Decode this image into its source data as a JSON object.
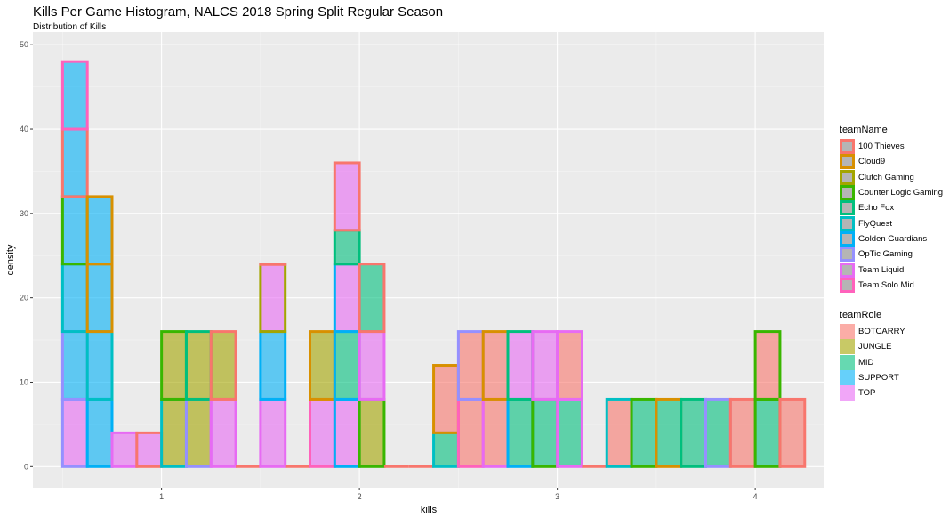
{
  "chart_data": {
    "type": "bar",
    "title": "Kills Per Game Histogram, NALCS 2018 Spring Split Regular Season",
    "subtitle": "Distribution of Kills",
    "xlabel": "kills",
    "ylabel": "density",
    "xlim": [
      0.35,
      4.35
    ],
    "ylim": [
      -2.5,
      51.5
    ],
    "x_ticks": [
      1,
      2,
      3,
      4
    ],
    "y_ticks": [
      0,
      10,
      20,
      30,
      40,
      50
    ],
    "bin_width": 0.125,
    "grid": true,
    "legend_position": "right",
    "fill_legend": {
      "title": "teamRole",
      "entries": [
        {
          "name": "BOTCARRY",
          "color": "#F8766D"
        },
        {
          "name": "JUNGLE",
          "color": "#A3A500"
        },
        {
          "name": "MID",
          "color": "#00BF7D"
        },
        {
          "name": "SUPPORT",
          "color": "#00B0F6"
        },
        {
          "name": "TOP",
          "color": "#E76BF3"
        }
      ]
    },
    "color_legend": {
      "title": "teamName",
      "entries": [
        {
          "name": "100 Thieves",
          "color": "#F8766D"
        },
        {
          "name": "Cloud9",
          "color": "#D89000"
        },
        {
          "name": "Clutch Gaming",
          "color": "#A3A500"
        },
        {
          "name": "Counter Logic Gaming",
          "color": "#39B600"
        },
        {
          "name": "Echo Fox",
          "color": "#00BF7D"
        },
        {
          "name": "FlyQuest",
          "color": "#00BFC4"
        },
        {
          "name": "Golden Guardians",
          "color": "#00B0F6"
        },
        {
          "name": "OpTic Gaming",
          "color": "#9590FF"
        },
        {
          "name": "Team Liquid",
          "color": "#E76BF3"
        },
        {
          "name": "Team Solo Mid",
          "color": "#FF62BC"
        }
      ]
    },
    "bars": [
      {
        "x": 0.5625,
        "segments": [
          {
            "role": "TOP",
            "team": "OpTic Gaming",
            "value": 8
          },
          {
            "role": "SUPPORT",
            "team": "OpTic Gaming",
            "value": 8
          },
          {
            "role": "SUPPORT",
            "team": "FlyQuest",
            "value": 8
          },
          {
            "role": "SUPPORT",
            "team": "Counter Logic Gaming",
            "value": 8
          },
          {
            "role": "SUPPORT",
            "team": "100 Thieves",
            "value": 8
          },
          {
            "role": "SUPPORT",
            "team": "Team Solo Mid",
            "value": 8
          }
        ]
      },
      {
        "x": 0.6875,
        "segments": [
          {
            "role": "SUPPORT",
            "team": "Golden Guardians",
            "value": 8
          },
          {
            "role": "SUPPORT",
            "team": "FlyQuest",
            "value": 8
          },
          {
            "role": "SUPPORT",
            "team": "Cloud9",
            "value": 8
          },
          {
            "role": "SUPPORT",
            "team": "Cloud9",
            "value": 8
          }
        ]
      },
      {
        "x": 0.8125,
        "segments": [
          {
            "role": "TOP",
            "team": "Team Liquid",
            "value": 4
          }
        ]
      },
      {
        "x": 0.9375,
        "segments": [
          {
            "role": "TOP",
            "team": "100 Thieves",
            "value": 4
          }
        ]
      },
      {
        "x": 1.0625,
        "segments": [
          {
            "role": "JUNGLE",
            "team": "FlyQuest",
            "value": 8
          },
          {
            "role": "JUNGLE",
            "team": "Counter Logic Gaming",
            "value": 8
          }
        ]
      },
      {
        "x": 1.1875,
        "segments": [
          {
            "role": "JUNGLE",
            "team": "OpTic Gaming",
            "value": 8
          },
          {
            "role": "JUNGLE",
            "team": "Echo Fox",
            "value": 8
          }
        ]
      },
      {
        "x": 1.3125,
        "segments": [
          {
            "role": "TOP",
            "team": "Team Liquid",
            "value": 8
          },
          {
            "role": "JUNGLE",
            "team": "100 Thieves",
            "value": 8
          }
        ]
      },
      {
        "x": 1.4375,
        "segments": []
      },
      {
        "x": 1.5625,
        "segments": [
          {
            "role": "TOP",
            "team": "Team Liquid",
            "value": 8
          },
          {
            "role": "SUPPORT",
            "team": "Golden Guardians",
            "value": 8
          },
          {
            "role": "TOP",
            "team": "Clutch Gaming",
            "value": 8
          },
          {
            "role": "TOP",
            "team": "100 Thieves",
            "value": 0
          }
        ]
      },
      {
        "x": 1.6875,
        "segments": []
      },
      {
        "x": 1.8125,
        "segments": [
          {
            "role": "TOP",
            "team": "Team Solo Mid",
            "value": 8
          },
          {
            "role": "JUNGLE",
            "team": "Cloud9",
            "value": 8
          }
        ]
      },
      {
        "x": 1.9375,
        "segments": [
          {
            "role": "TOP",
            "team": "Golden Guardians",
            "value": 8
          },
          {
            "role": "MID",
            "team": "Golden Guardians",
            "value": 8
          },
          {
            "role": "TOP",
            "team": "Golden Guardians",
            "value": 8
          },
          {
            "role": "MID",
            "team": "Echo Fox",
            "value": 4
          },
          {
            "role": "TOP",
            "team": "100 Thieves",
            "value": 8
          }
        ]
      },
      {
        "x": 2.0625,
        "segments": [
          {
            "role": "JUNGLE",
            "team": "Counter Logic Gaming",
            "value": 8
          },
          {
            "role": "TOP",
            "team": "Team Liquid",
            "value": 8
          },
          {
            "role": "MID",
            "team": "100 Thieves",
            "value": 8
          }
        ]
      },
      {
        "x": 2.1875,
        "segments": []
      },
      {
        "x": 2.3125,
        "segments": []
      },
      {
        "x": 2.4375,
        "segments": [
          {
            "role": "MID",
            "team": "FlyQuest",
            "value": 4
          },
          {
            "role": "BOTCARRY",
            "team": "Cloud9",
            "value": 8
          }
        ]
      },
      {
        "x": 2.5625,
        "segments": [
          {
            "role": "BOTCARRY",
            "team": "Team Solo Mid",
            "value": 8
          },
          {
            "role": "BOTCARRY",
            "team": "OpTic Gaming",
            "value": 8
          }
        ]
      },
      {
        "x": 2.6875,
        "segments": [
          {
            "role": "BOTCARRY",
            "team": "Team Liquid",
            "value": 8
          },
          {
            "role": "BOTCARRY",
            "team": "Cloud9",
            "value": 8
          }
        ]
      },
      {
        "x": 2.8125,
        "segments": [
          {
            "role": "MID",
            "team": "Golden Guardians",
            "value": 8
          },
          {
            "role": "TOP",
            "team": "Echo Fox",
            "value": 8
          }
        ]
      },
      {
        "x": 2.9375,
        "segments": [
          {
            "role": "MID",
            "team": "Counter Logic Gaming",
            "value": 8
          },
          {
            "role": "TOP",
            "team": "Team Liquid",
            "value": 8
          }
        ]
      },
      {
        "x": 3.0625,
        "segments": [
          {
            "role": "MID",
            "team": "Team Liquid",
            "value": 8
          },
          {
            "role": "BOTCARRY",
            "team": "Team Liquid",
            "value": 8
          }
        ]
      },
      {
        "x": 3.1875,
        "segments": []
      },
      {
        "x": 3.3125,
        "segments": [
          {
            "role": "BOTCARRY",
            "team": "FlyQuest",
            "value": 8
          }
        ]
      },
      {
        "x": 3.4375,
        "segments": [
          {
            "role": "MID",
            "team": "Counter Logic Gaming",
            "value": 8
          }
        ]
      },
      {
        "x": 3.5625,
        "segments": [
          {
            "role": "MID",
            "team": "Cloud9",
            "value": 8
          }
        ]
      },
      {
        "x": 3.6875,
        "segments": [
          {
            "role": "MID",
            "team": "Echo Fox",
            "value": 8
          }
        ]
      },
      {
        "x": 3.8125,
        "segments": [
          {
            "role": "MID",
            "team": "OpTic Gaming",
            "value": 8
          }
        ]
      },
      {
        "x": 3.9375,
        "segments": [
          {
            "role": "BOTCARRY",
            "team": "100 Thieves",
            "value": 8
          }
        ]
      },
      {
        "x": 4.0625,
        "segments": [
          {
            "role": "MID",
            "team": "Counter Logic Gaming",
            "value": 8
          },
          {
            "role": "BOTCARRY",
            "team": "Counter Logic Gaming",
            "value": 8
          }
        ]
      },
      {
        "x": 4.1875,
        "segments": [
          {
            "role": "BOTCARRY",
            "team": "100 Thieves",
            "value": 8
          }
        ]
      }
    ]
  }
}
